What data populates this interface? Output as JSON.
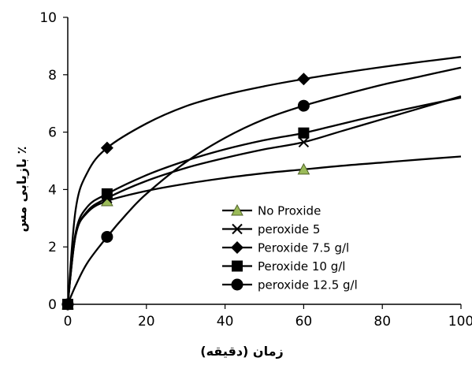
{
  "chart_data": {
    "type": "scatter",
    "xlabel": "زمان (دقیقه)",
    "ylabel": "بازیابی مس ٪",
    "xlim": [
      0,
      100
    ],
    "ylim": [
      0,
      10
    ],
    "xticks": [
      0,
      20,
      40,
      60,
      80,
      100
    ],
    "yticks": [
      0,
      2,
      4,
      6,
      8,
      10
    ],
    "grid": false,
    "legend_position": "bottom-right",
    "series": [
      {
        "name": "No Proxide",
        "marker": "triangle",
        "marker_color": "#9BBB59",
        "points": [
          [
            0,
            0
          ],
          [
            10,
            3.6
          ],
          [
            60,
            4.7
          ]
        ],
        "curve": [
          [
            0,
            0
          ],
          [
            2,
            2.4
          ],
          [
            5,
            3.2
          ],
          [
            10,
            3.6
          ],
          [
            20,
            3.95
          ],
          [
            30,
            4.2
          ],
          [
            40,
            4.4
          ],
          [
            50,
            4.57
          ],
          [
            60,
            4.7
          ],
          [
            70,
            4.83
          ],
          [
            80,
            4.94
          ],
          [
            90,
            5.05
          ],
          [
            100,
            5.15
          ]
        ]
      },
      {
        "name": "peroxide 5",
        "marker": "x",
        "marker_color": "#000000",
        "points": [
          [
            0,
            0
          ],
          [
            10,
            3.7
          ],
          [
            60,
            5.65
          ]
        ],
        "curve": [
          [
            0,
            0
          ],
          [
            2,
            2.4
          ],
          [
            5,
            3.25
          ],
          [
            10,
            3.7
          ],
          [
            20,
            4.3
          ],
          [
            30,
            4.75
          ],
          [
            40,
            5.1
          ],
          [
            50,
            5.4
          ],
          [
            60,
            5.65
          ],
          [
            70,
            6.05
          ],
          [
            80,
            6.45
          ],
          [
            90,
            6.85
          ],
          [
            100,
            7.25
          ]
        ]
      },
      {
        "name": "Peroxide 7.5 g/l",
        "marker": "diamond",
        "marker_color": "#000000",
        "points": [
          [
            0,
            0
          ],
          [
            10,
            5.45
          ],
          [
            60,
            7.85
          ]
        ],
        "curve": [
          [
            0,
            0
          ],
          [
            2,
            3.3
          ],
          [
            5,
            4.6
          ],
          [
            10,
            5.45
          ],
          [
            20,
            6.3
          ],
          [
            30,
            6.9
          ],
          [
            40,
            7.3
          ],
          [
            50,
            7.6
          ],
          [
            60,
            7.85
          ],
          [
            70,
            8.07
          ],
          [
            80,
            8.27
          ],
          [
            90,
            8.45
          ],
          [
            100,
            8.62
          ]
        ]
      },
      {
        "name": "Peroxide 10 g/l",
        "marker": "square",
        "marker_color": "#000000",
        "points": [
          [
            0,
            0
          ],
          [
            10,
            3.85
          ],
          [
            60,
            5.97
          ]
        ],
        "curve": [
          [
            0,
            0
          ],
          [
            2,
            2.5
          ],
          [
            5,
            3.4
          ],
          [
            10,
            3.85
          ],
          [
            20,
            4.5
          ],
          [
            30,
            5.0
          ],
          [
            40,
            5.4
          ],
          [
            50,
            5.72
          ],
          [
            60,
            5.97
          ],
          [
            70,
            6.3
          ],
          [
            80,
            6.62
          ],
          [
            90,
            6.92
          ],
          [
            100,
            7.2
          ]
        ]
      },
      {
        "name": "peroxide 12.5 g/l",
        "marker": "circle",
        "marker_color": "#000000",
        "points": [
          [
            0,
            0
          ],
          [
            10,
            2.35
          ],
          [
            60,
            6.92
          ]
        ],
        "curve": [
          [
            0,
            0
          ],
          [
            2,
            0.65
          ],
          [
            5,
            1.45
          ],
          [
            10,
            2.35
          ],
          [
            15,
            3.15
          ],
          [
            20,
            3.85
          ],
          [
            30,
            4.95
          ],
          [
            40,
            5.8
          ],
          [
            50,
            6.45
          ],
          [
            60,
            6.92
          ],
          [
            70,
            7.3
          ],
          [
            80,
            7.65
          ],
          [
            90,
            7.95
          ],
          [
            100,
            8.25
          ]
        ]
      }
    ]
  }
}
